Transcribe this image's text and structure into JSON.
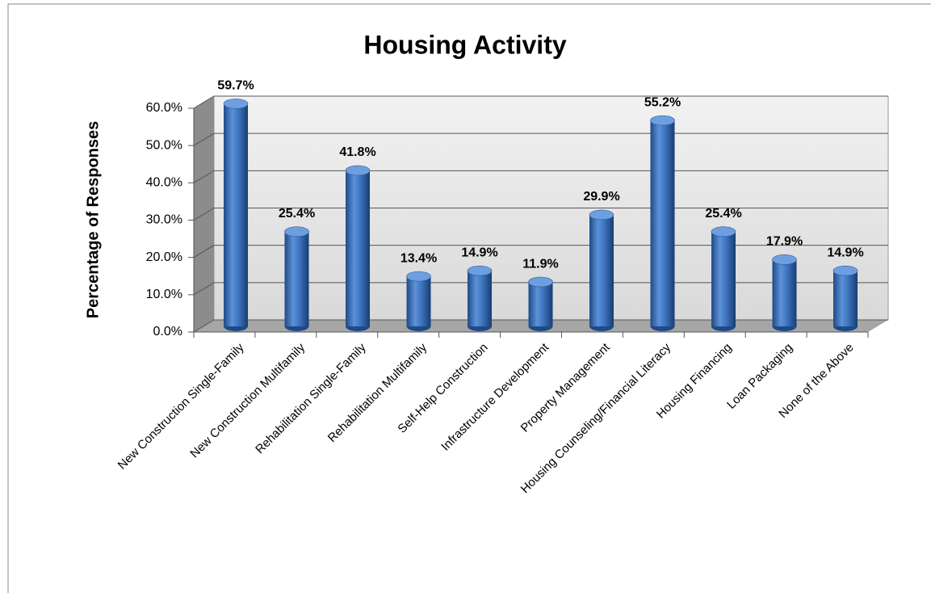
{
  "chart_data": {
    "type": "bar",
    "title": "Housing Activity",
    "y_label": "Percentage of Responses",
    "categories": [
      "New Construction Single-Family",
      "New Construction Multifamily",
      "Rehabilitation Single-Family",
      "Rehabilitation Multifamily",
      "Self-Help Construction",
      "Infrastructure Development",
      "Property Management",
      "Housing Counseling/Financial Literacy",
      "Housing Financing",
      "Loan Packaging",
      "None of the Above"
    ],
    "values": [
      59.7,
      25.4,
      41.8,
      13.4,
      14.9,
      11.9,
      29.9,
      55.2,
      25.4,
      17.9,
      14.9
    ],
    "value_labels": [
      "59.7%",
      "25.4%",
      "41.8%",
      "13.4%",
      "14.9%",
      "11.9%",
      "29.9%",
      "55.2%",
      "25.4%",
      "17.9%",
      "14.9%"
    ],
    "color": "#3a6fb8",
    "ylim": [
      0,
      60
    ],
    "yticks": [
      {
        "value": 0,
        "label": "0.0%"
      },
      {
        "value": 10,
        "label": "10.0%"
      },
      {
        "value": 20,
        "label": "20.0%"
      },
      {
        "value": 30,
        "label": "30.0%"
      },
      {
        "value": 40,
        "label": "40.0%"
      },
      {
        "value": 50,
        "label": "50.0%"
      },
      {
        "value": 60,
        "label": "60.0%"
      }
    ],
    "grid": true
  }
}
